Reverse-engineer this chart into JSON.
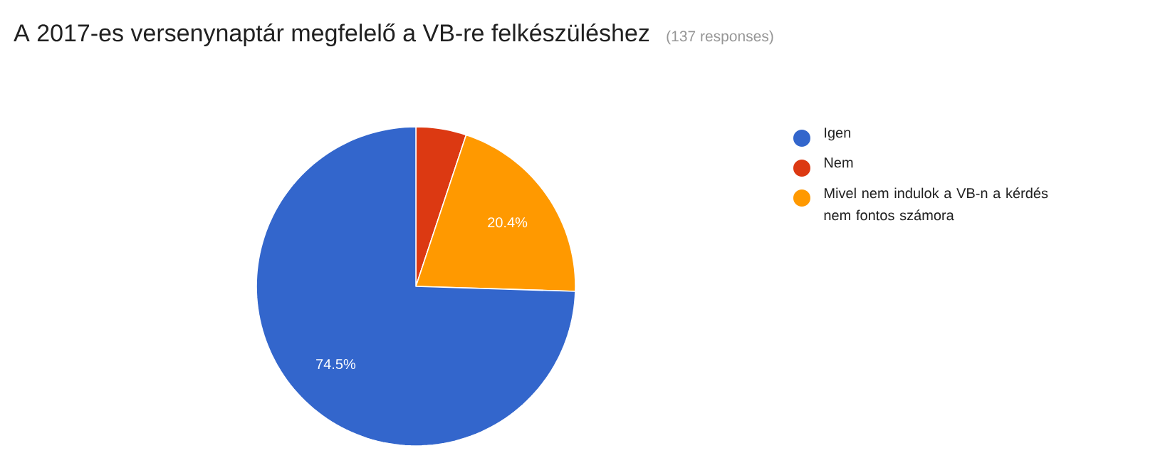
{
  "chart_data": {
    "type": "pie",
    "title": "A 2017-es versenynaptár megfelelő a VB-re felkészüléshez",
    "subtitle": "(137 responses)",
    "categories": [
      "Igen",
      "Nem",
      "Mivel nem indulok a VB-n a kérdés nem fontos számora"
    ],
    "values": [
      74.5,
      5.1,
      20.4
    ],
    "colors": [
      "#3366cc",
      "#dc3912",
      "#ff9900"
    ],
    "value_labels": [
      "74.5%",
      null,
      "20.4%"
    ],
    "legend": "right"
  }
}
